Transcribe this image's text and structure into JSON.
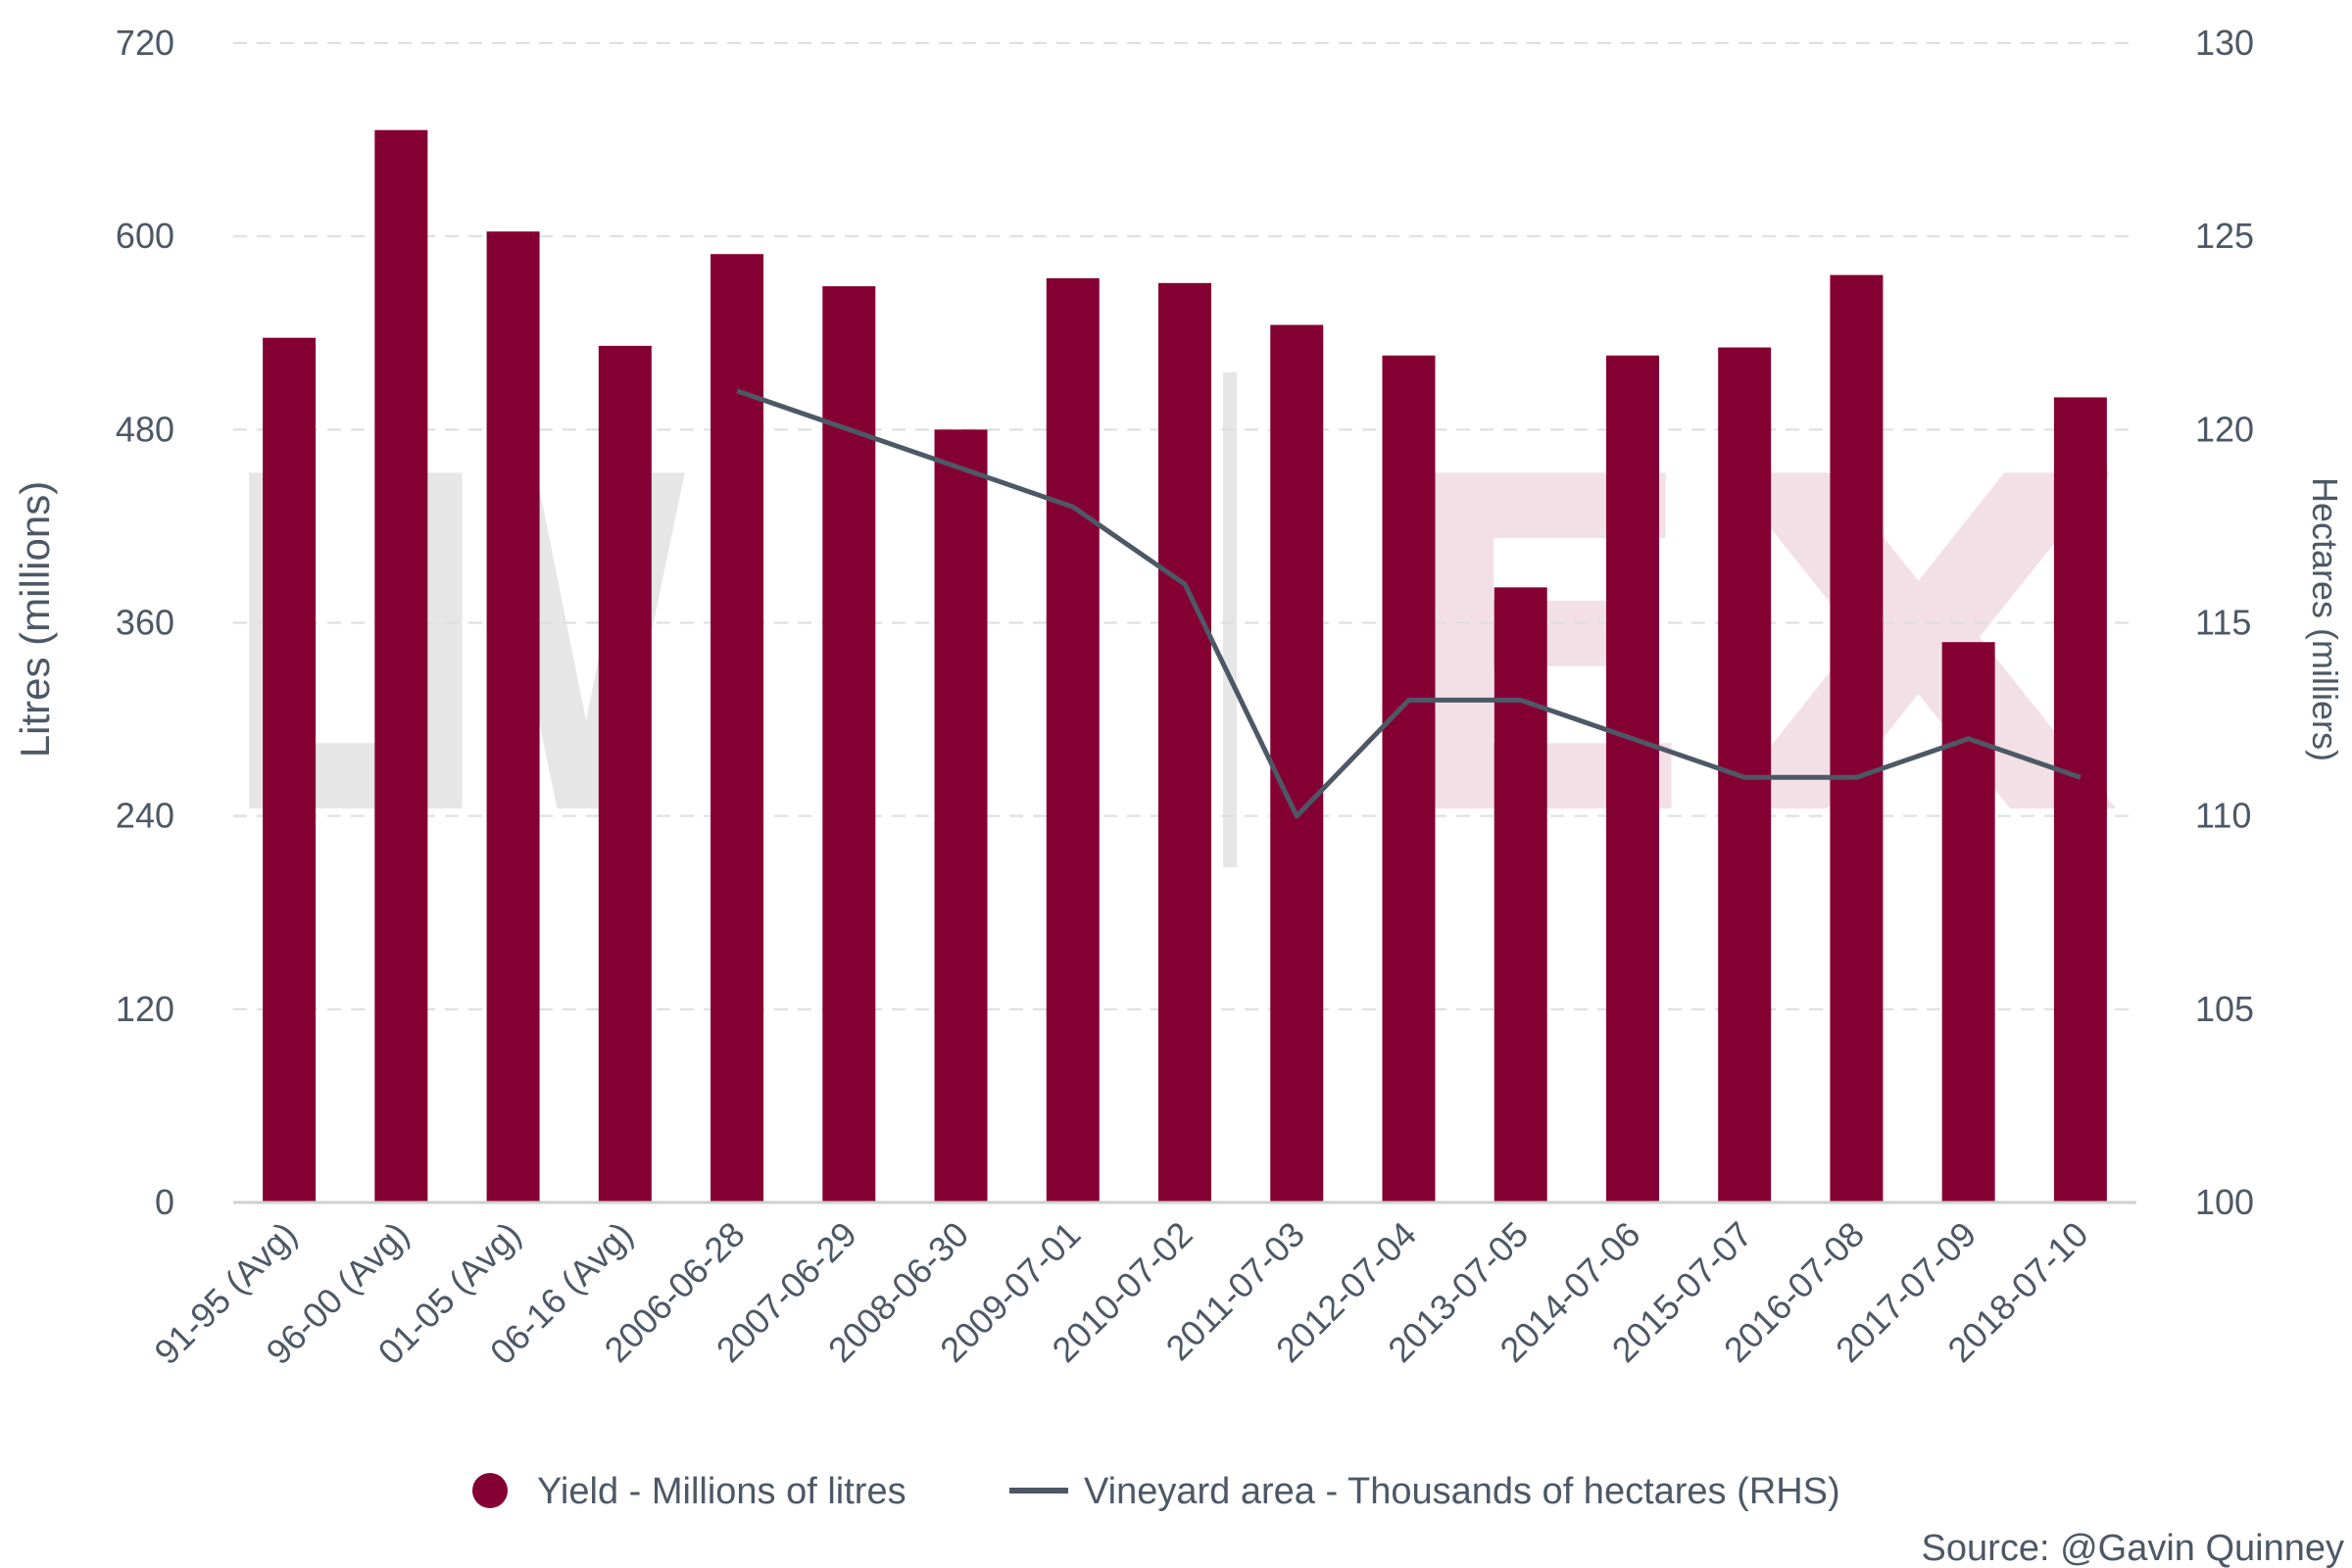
{
  "chart_data": {
    "type": "bar",
    "categories": [
      "91-95 (Avg)",
      "96-00 (Avg)",
      "01-05 (Avg)",
      "06-16 (Avg)",
      "2006-06-28",
      "2007-06-29",
      "2008-06-30",
      "2009-07-01",
      "2010-07-02",
      "2011-07-03",
      "2012-07-04",
      "2013-07-05",
      "2014-07-06",
      "2015-07-07",
      "2016-07-08",
      "2017-07-09",
      "2018-07-10"
    ],
    "series": [
      {
        "name": "Yield - Millions of litres",
        "type": "bar",
        "axis": "left",
        "color": "#850032",
        "values": [
          537,
          666,
          603,
          532,
          589,
          569,
          480,
          574,
          571,
          545,
          526,
          382,
          526,
          531,
          576,
          348,
          500
        ]
      },
      {
        "name": "Vineyard area - Thousands of hectares (RHS)",
        "type": "line",
        "axis": "right",
        "color": "#4d5866",
        "values": [
          null,
          null,
          null,
          null,
          121,
          120,
          119,
          118,
          116,
          110,
          113,
          113,
          112,
          111,
          111,
          112,
          111
        ]
      }
    ],
    "ylabel": "Litres (millions)",
    "y2label": "Hectares (milliers)",
    "ylim": [
      0,
      720
    ],
    "y2lim": [
      100,
      130
    ],
    "yticks": [
      "0",
      "120",
      "240",
      "360",
      "480",
      "600",
      "720"
    ],
    "y2ticks": [
      "100",
      "105",
      "110",
      "115",
      "120",
      "125",
      "130"
    ],
    "grid": true,
    "legend_position": "bottom-center",
    "watermark": "LIV|EX",
    "source": "Source: @Gavin Quinney"
  }
}
